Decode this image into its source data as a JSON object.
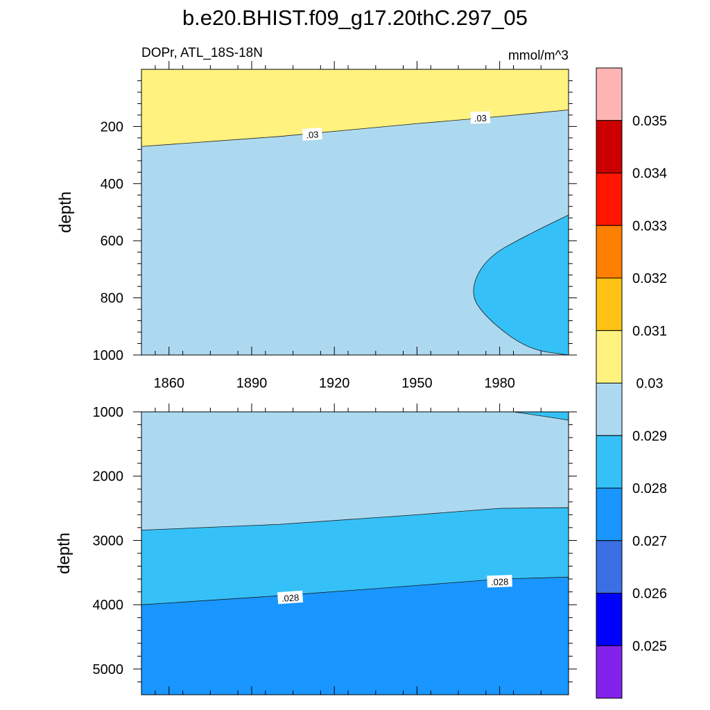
{
  "title": "b.e20.BHIST.f09_g17.20thC.297_05",
  "chart_data": {
    "type": "contour",
    "variable": "DOPr, ATL_18S-18N",
    "units": "mmol/m^3",
    "x_ticks": [
      "1860",
      "1890",
      "1920",
      "1950",
      "1980"
    ],
    "xlim": [
      1850,
      2005
    ],
    "colorbar": {
      "levels": [
        "0.025",
        "0.026",
        "0.027",
        "0.028",
        "0.029",
        "0.03",
        "0.031",
        "0.032",
        "0.033",
        "0.034",
        "0.035"
      ],
      "colors": [
        "#8322ea",
        "#0000ff",
        "#3c6fe4",
        "#1996ff",
        "#35c1f7",
        "#add9f0",
        "#fff27f",
        "#ffc214",
        "#ff7f00",
        "#ff1500",
        "#cc0000",
        "#ffb4b4"
      ]
    },
    "panels": [
      {
        "ylabel": "depth",
        "ylim": [
          0,
          1000
        ],
        "y_ticks": [
          "200",
          "400",
          "600",
          "800",
          "1000"
        ],
        "contour_labels": [
          ".03",
          ".03"
        ],
        "regions": [
          {
            "level_range": "0.029-0.03",
            "color": "#add9f0"
          },
          {
            "level_range": "0.03-0.031",
            "color": "#fff27f",
            "boundary": [
              [
                1850,
                270
              ],
              [
                1900,
                235
              ],
              [
                1950,
                190
              ],
              [
                1980,
                165
              ],
              [
                2005,
                142
              ]
            ]
          },
          {
            "level_range": "0.028-0.029",
            "color": "#35c1f7",
            "boundary": [
              [
                2005,
                510
              ],
              [
                1990,
                580
              ],
              [
                1975,
                660
              ],
              [
                1969,
                780
              ],
              [
                1975,
                870
              ],
              [
                1990,
                980
              ],
              [
                2005,
                1000
              ]
            ]
          }
        ]
      },
      {
        "ylabel": "depth",
        "ylim": [
          1000,
          5400
        ],
        "y_ticks": [
          "1000",
          "2000",
          "3000",
          "4000",
          "5000"
        ],
        "contour_labels": [
          ".028",
          ".028"
        ],
        "regions": [
          {
            "level_range": "0.029-0.03",
            "color": "#add9f0"
          },
          {
            "level_range": "0.028-0.029",
            "color": "#35c1f7",
            "boundary": [
              [
                1850,
                2840
              ],
              [
                1900,
                2750
              ],
              [
                1950,
                2600
              ],
              [
                1980,
                2500
              ],
              [
                2005,
                2490
              ]
            ]
          },
          {
            "level_range": "0.027-0.028",
            "color": "#1996ff",
            "boundary": [
              [
                1850,
                4000
              ],
              [
                1900,
                3860
              ],
              [
                1950,
                3700
              ],
              [
                1980,
                3600
              ],
              [
                2005,
                3570
              ]
            ]
          }
        ]
      }
    ]
  }
}
